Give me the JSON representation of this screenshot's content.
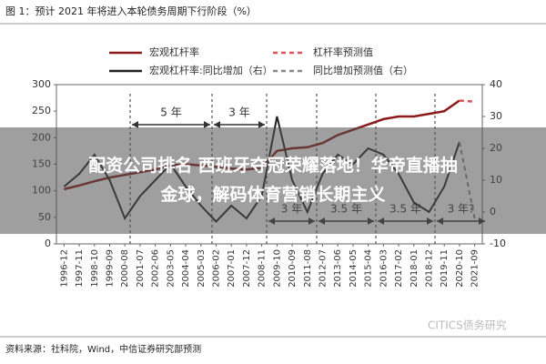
{
  "chart_data": {
    "type": "line",
    "title": "图 1：预计 2021 年将进入本轮债务周期下行阶段（%）",
    "categories": [
      "1996-12",
      "1997-11",
      "1998-10",
      "1999-09",
      "2000-08",
      "2001-07",
      "2002-06",
      "2003-05",
      "2004-04",
      "2005-03",
      "2006-02",
      "2007-01",
      "2007-12",
      "2008-11",
      "2009-10",
      "2010-09",
      "2011-08",
      "2012-07",
      "2013-06",
      "2014-05",
      "2015-04",
      "2016-03",
      "2017-02",
      "2018-01",
      "2018-12",
      "2019-11",
      "2020-10",
      "2021-09"
    ],
    "series": [
      {
        "name": "宏观杠杆率",
        "color": "#8b1a1a",
        "dash": false,
        "values": [
          103,
          110,
          118,
          125,
          130,
          135,
          140,
          148,
          150,
          148,
          145,
          142,
          140,
          143,
          175,
          180,
          182,
          190,
          205,
          215,
          225,
          235,
          240,
          240,
          245,
          250,
          270,
          null
        ]
      },
      {
        "name": "杠杆率预测值",
        "color": "#e0505a",
        "dash": true,
        "values": [
          null,
          null,
          null,
          null,
          null,
          null,
          null,
          null,
          null,
          null,
          null,
          null,
          null,
          null,
          null,
          null,
          null,
          null,
          null,
          null,
          null,
          null,
          null,
          null,
          null,
          null,
          270,
          268
        ]
      },
      {
        "name": "宏观杠杆率:同比增加（右）",
        "color": "#222222",
        "dash": false,
        "axis": "y2",
        "values": [
          8,
          12,
          18,
          10,
          -2,
          5,
          10,
          15,
          8,
          2,
          -3,
          2,
          -2,
          5,
          30,
          10,
          0,
          12,
          18,
          15,
          20,
          18,
          12,
          3,
          0,
          8,
          22,
          null
        ]
      },
      {
        "name": "同比增加预测值（右）",
        "color": "#888888",
        "dash": true,
        "axis": "y2",
        "values": [
          null,
          null,
          null,
          null,
          null,
          null,
          null,
          null,
          null,
          null,
          null,
          null,
          null,
          null,
          null,
          null,
          null,
          null,
          null,
          null,
          null,
          null,
          null,
          null,
          null,
          null,
          22,
          -2
        ]
      }
    ],
    "ylim": [
      0,
      300
    ],
    "yticks": [
      0,
      50,
      100,
      150,
      200,
      250,
      300
    ],
    "y2lim": [
      -10,
      40
    ],
    "y2ticks": [
      -10,
      0,
      10,
      20,
      30,
      40
    ],
    "annotations": [
      "5 年",
      "3 年",
      "3 年",
      "3.5 年",
      "3.5 年",
      "3 年?"
    ],
    "banner": "配资公司排名 西班牙夺冠荣耀落地！华帝直播抽金球，解码体育营销长期主义",
    "source": "资料来源：社科院，Wind，中信证券研究部预测",
    "watermark": "CITICS债务研究"
  }
}
